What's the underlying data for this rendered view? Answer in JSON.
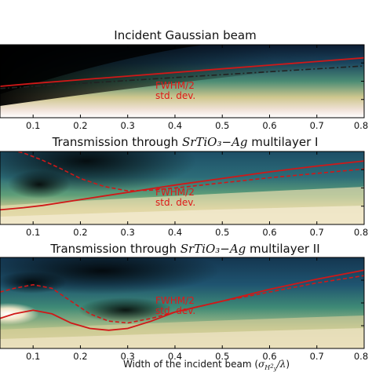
{
  "chart_data": [
    {
      "type": "heatmap",
      "title_plain": "Incident Gaussian beam",
      "x": [
        0.03,
        0.1,
        0.2,
        0.3,
        0.4,
        0.5,
        0.6,
        0.7,
        0.8
      ],
      "xlim": [
        0.03,
        0.8
      ],
      "xticks": [
        "0.1",
        "0.2",
        "0.3",
        "0.4",
        "0.5",
        "0.6",
        "0.7",
        "0.8"
      ],
      "series": [
        {
          "name": "FWHM/2",
          "style": "solid",
          "color": "#d01818",
          "y": [
            0.43,
            0.47,
            0.52,
            0.57,
            0.62,
            0.67,
            0.72,
            0.77,
            0.82
          ]
        },
        {
          "name": "std. dev.",
          "style": "dashdot",
          "color": "#222222",
          "y": [
            0.4,
            0.43,
            0.47,
            0.51,
            0.55,
            0.59,
            0.63,
            0.67,
            0.71
          ]
        }
      ]
    },
    {
      "type": "heatmap",
      "title_pre": "Transmission through ",
      "title_math": "SrTiO₃−Ag",
      "title_post": " multilayer I",
      "x": [
        0.03,
        0.08,
        0.12,
        0.16,
        0.2,
        0.25,
        0.3,
        0.35,
        0.4,
        0.5,
        0.6,
        0.7,
        0.8
      ],
      "xlim": [
        0.03,
        0.8
      ],
      "xticks": [
        "0.1",
        "0.2",
        "0.3",
        "0.4",
        "0.5",
        "0.6",
        "0.7",
        "0.8"
      ],
      "series": [
        {
          "name": "FWHM/2",
          "style": "solid",
          "color": "#d01818",
          "y": [
            0.2,
            0.23,
            0.26,
            0.3,
            0.34,
            0.39,
            0.44,
            0.49,
            0.54,
            0.63,
            0.72,
            0.8,
            0.87
          ]
        },
        {
          "name": "std. dev.",
          "style": "dashed",
          "color": "#d01818",
          "y": [
            1.05,
            0.98,
            0.88,
            0.76,
            0.63,
            0.52,
            0.46,
            0.47,
            0.5,
            0.57,
            0.64,
            0.7,
            0.76
          ]
        }
      ]
    },
    {
      "type": "heatmap",
      "title_pre": "Transmission through ",
      "title_math": "SrTiO₃−Ag",
      "title_post": " multilayer II",
      "xlabel_pre": "Width of the incident beam (",
      "xlabel_post": ")",
      "x": [
        0.03,
        0.06,
        0.1,
        0.14,
        0.18,
        0.22,
        0.26,
        0.3,
        0.35,
        0.4,
        0.5,
        0.6,
        0.7,
        0.8
      ],
      "xlim": [
        0.03,
        0.8
      ],
      "xticks": [
        "0.1",
        "0.2",
        "0.3",
        "0.4",
        "0.5",
        "0.6",
        "0.7",
        "0.8"
      ],
      "series": [
        {
          "name": "FWHM/2",
          "style": "solid",
          "color": "#d01818",
          "y": [
            0.33,
            0.38,
            0.42,
            0.38,
            0.28,
            0.22,
            0.2,
            0.22,
            0.3,
            0.4,
            0.52,
            0.65,
            0.76,
            0.86
          ]
        },
        {
          "name": "std. dev.",
          "style": "dashed",
          "color": "#d01818",
          "y": [
            0.62,
            0.66,
            0.7,
            0.66,
            0.52,
            0.38,
            0.3,
            0.28,
            0.33,
            0.4,
            0.52,
            0.62,
            0.72,
            0.8
          ]
        }
      ]
    }
  ],
  "annotations": [
    "FWHM/2",
    "std. dev."
  ]
}
